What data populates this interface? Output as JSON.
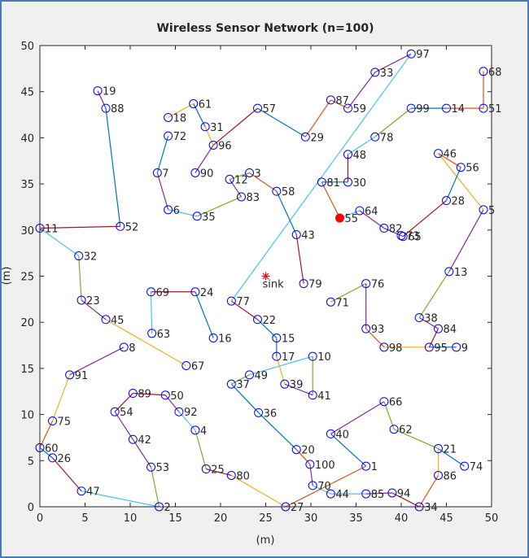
{
  "chart_data": {
    "type": "scatter",
    "title": "Wireless Sensor Network (n=100)",
    "xlabel": "(m)",
    "ylabel": "(m)",
    "xlim": [
      0,
      50
    ],
    "ylim": [
      0,
      50
    ],
    "xticks": [
      0,
      5,
      10,
      15,
      20,
      25,
      30,
      35,
      40,
      45,
      50
    ],
    "yticks": [
      0,
      5,
      10,
      15,
      20,
      25,
      30,
      35,
      40,
      45,
      50
    ],
    "nodes": {
      "color": "#0000ff",
      "labels": [
        "1",
        "2",
        "3",
        "4",
        "5",
        "6",
        "7",
        "8",
        "9",
        "10",
        "11",
        "12",
        "13",
        "14",
        "15",
        "16",
        "17",
        "18",
        "19",
        "20",
        "21",
        "22",
        "23",
        "24",
        "25",
        "26",
        "27",
        "28",
        "29",
        "30",
        "31",
        "32",
        "33",
        "34",
        "35",
        "36",
        "37",
        "38",
        "39",
        "40",
        "41",
        "42",
        "43",
        "44",
        "45",
        "46",
        "47",
        "48",
        "49",
        "50",
        "51",
        "52",
        "53",
        "54",
        "55",
        "56",
        "57",
        "58",
        "59",
        "60",
        "61",
        "62",
        "63",
        "64",
        "65",
        "66",
        "67",
        "68",
        "69",
        "70",
        "71",
        "72",
        "73",
        "74",
        "75",
        "76",
        "77",
        "78",
        "79",
        "80",
        "81",
        "82",
        "83",
        "84",
        "85",
        "86",
        "87",
        "88",
        "89",
        "90",
        "91",
        "92",
        "93",
        "94",
        "95",
        "96",
        "97",
        "98",
        "99",
        "100"
      ],
      "x": [
        36.1,
        13.2,
        23.2,
        17.2,
        49.1,
        14.2,
        13.0,
        9.3,
        46.1,
        30.2,
        0.0,
        21.0,
        45.3,
        45.0,
        26.2,
        19.2,
        26.2,
        14.2,
        6.4,
        28.4,
        44.1,
        24.1,
        4.6,
        17.2,
        18.4,
        1.4,
        27.2,
        45.0,
        29.4,
        34.1,
        18.3,
        4.3,
        37.1,
        42.0,
        17.4,
        24.2,
        21.2,
        42.0,
        27.1,
        32.2,
        30.2,
        10.3,
        28.4,
        32.2,
        7.3,
        44.1,
        4.6,
        34.1,
        23.2,
        13.9,
        49.1,
        8.9,
        12.3,
        8.3,
        33.2,
        46.6,
        24.1,
        26.2,
        34.1,
        0.0,
        17.0,
        39.2,
        12.4,
        35.4,
        40.2,
        38.1,
        16.2,
        49.1,
        12.3,
        30.2,
        32.2,
        14.2,
        40.0,
        47.0,
        1.4,
        36.1,
        21.2,
        37.1,
        29.2,
        21.2,
        31.2,
        38.1,
        22.3,
        44.1,
        36.1,
        44.1,
        32.2,
        7.3,
        10.3,
        17.2,
        3.3,
        15.4,
        36.1,
        39.0,
        43.1,
        19.2,
        41.1,
        38.1,
        41.1,
        29.9
      ],
      "y": [
        4.4,
        0.0,
        36.2,
        8.3,
        32.2,
        32.2,
        36.2,
        17.3,
        17.3,
        16.3,
        30.2,
        35.5,
        25.5,
        43.2,
        18.3,
        18.3,
        16.3,
        42.2,
        45.1,
        6.2,
        6.3,
        20.3,
        22.4,
        23.3,
        4.1,
        5.3,
        0.0,
        33.2,
        40.1,
        35.2,
        41.2,
        27.2,
        47.1,
        0.0,
        31.5,
        10.2,
        13.3,
        20.5,
        13.3,
        7.9,
        12.1,
        7.3,
        29.5,
        1.4,
        20.3,
        38.3,
        1.7,
        38.2,
        14.3,
        12.1,
        43.2,
        30.4,
        4.3,
        10.3,
        31.3,
        36.8,
        43.2,
        34.2,
        43.2,
        6.4,
        43.7,
        8.4,
        18.8,
        32.1,
        29.3,
        11.4,
        15.3,
        47.2,
        23.3,
        2.3,
        22.2,
        40.2,
        29.4,
        4.4,
        9.3,
        24.2,
        22.3,
        40.1,
        24.2,
        3.4,
        35.2,
        30.2,
        33.6,
        19.3,
        1.4,
        3.4,
        44.1,
        43.2,
        12.3,
        36.2,
        14.3,
        10.3,
        19.3,
        1.5,
        17.3,
        39.2,
        49.1,
        17.3,
        43.2,
        4.6
      ]
    },
    "highlight": {
      "node": "55",
      "color": "#ff0000"
    },
    "sink": {
      "label": "sink",
      "x": 25,
      "y": 25,
      "color": "#ff0000"
    },
    "edges": [
      {
        "from": "97",
        "to": "33",
        "color": "#7E2F8E"
      },
      {
        "from": "33",
        "to": "59",
        "color": "#7E2F8E"
      },
      {
        "from": "97",
        "to": "77",
        "color": "#4DBEEE"
      },
      {
        "from": "87",
        "to": "59",
        "color": "#D95319"
      },
      {
        "from": "87",
        "to": "29",
        "color": "#D95319"
      },
      {
        "from": "29",
        "to": "57",
        "color": "#0072BD"
      },
      {
        "from": "57",
        "to": "96",
        "color": "#A2142F"
      },
      {
        "from": "96",
        "to": "31",
        "color": "#EDB120"
      },
      {
        "from": "31",
        "to": "61",
        "color": "#0072BD"
      },
      {
        "from": "61",
        "to": "18",
        "color": "#EDB120"
      },
      {
        "from": "96",
        "to": "90",
        "color": "#7E2F8E"
      },
      {
        "from": "72",
        "to": "7",
        "color": "#0072BD"
      },
      {
        "from": "7",
        "to": "6",
        "color": "#7E2F8E"
      },
      {
        "from": "6",
        "to": "35",
        "color": "#4DBEEE"
      },
      {
        "from": "35",
        "to": "83",
        "color": "#77AC30"
      },
      {
        "from": "83",
        "to": "12",
        "color": "#7E2F8E"
      },
      {
        "from": "12",
        "to": "3",
        "color": "#77AC30"
      },
      {
        "from": "3",
        "to": "58",
        "color": "#D95319"
      },
      {
        "from": "58",
        "to": "43",
        "color": "#0072BD"
      },
      {
        "from": "43",
        "to": "79",
        "color": "#A2142F"
      },
      {
        "from": "71",
        "to": "76",
        "color": "#77AC30"
      },
      {
        "from": "76",
        "to": "93",
        "color": "#7E2F8E"
      },
      {
        "from": "93",
        "to": "98",
        "color": "#D95319"
      },
      {
        "from": "98",
        "to": "95",
        "color": "#EDB120"
      },
      {
        "from": "95",
        "to": "9",
        "color": "#0072BD"
      },
      {
        "from": "95",
        "to": "84",
        "color": "#A2142F"
      },
      {
        "from": "84",
        "to": "38",
        "color": "#7E2F8E"
      },
      {
        "from": "38",
        "to": "13",
        "color": "#77AC30"
      },
      {
        "from": "13",
        "to": "5",
        "color": "#7E2F8E"
      },
      {
        "from": "5",
        "to": "46",
        "color": "#EDB120"
      },
      {
        "from": "46",
        "to": "56",
        "color": "#D95319"
      },
      {
        "from": "56",
        "to": "28",
        "color": "#0072BD"
      },
      {
        "from": "28",
        "to": "65",
        "color": "#A2142F"
      },
      {
        "from": "65",
        "to": "73",
        "color": "#0072BD"
      },
      {
        "from": "73",
        "to": "82",
        "color": "#7E2F8E"
      },
      {
        "from": "82",
        "to": "64",
        "color": "#7E2F8E"
      },
      {
        "from": "64",
        "to": "55",
        "color": "#4DBEEE"
      },
      {
        "from": "55",
        "to": "81",
        "color": "#D95319"
      },
      {
        "from": "81",
        "to": "30",
        "color": "#0072BD"
      },
      {
        "from": "30",
        "to": "48",
        "color": "#A2142F"
      },
      {
        "from": "48",
        "to": "78",
        "color": "#4DBEEE"
      },
      {
        "from": "78",
        "to": "99",
        "color": "#77AC30"
      },
      {
        "from": "99",
        "to": "14",
        "color": "#0072BD"
      },
      {
        "from": "14",
        "to": "51",
        "color": "#D95319"
      },
      {
        "from": "51",
        "to": "68",
        "color": "#D95319"
      },
      {
        "from": "19",
        "to": "88",
        "color": "#7E2F8E"
      },
      {
        "from": "88",
        "to": "52",
        "color": "#0072BD"
      },
      {
        "from": "52",
        "to": "11",
        "color": "#A2142F"
      },
      {
        "from": "11",
        "to": "32",
        "color": "#4DBEEE"
      },
      {
        "from": "32",
        "to": "23",
        "color": "#77AC30"
      },
      {
        "from": "23",
        "to": "45",
        "color": "#7E2F8E"
      },
      {
        "from": "45",
        "to": "67",
        "color": "#EDB120"
      },
      {
        "from": "24",
        "to": "69",
        "color": "#A2142F"
      },
      {
        "from": "24",
        "to": "16",
        "color": "#0072BD"
      },
      {
        "from": "69",
        "to": "63",
        "color": "#4DBEEE"
      },
      {
        "from": "8",
        "to": "91",
        "color": "#7E2F8E"
      },
      {
        "from": "91",
        "to": "75",
        "color": "#EDB120"
      },
      {
        "from": "75",
        "to": "60",
        "color": "#D95319"
      },
      {
        "from": "60",
        "to": "26",
        "color": "#0072BD"
      },
      {
        "from": "26",
        "to": "47",
        "color": "#A2142F"
      },
      {
        "from": "47",
        "to": "2",
        "color": "#4DBEEE"
      },
      {
        "from": "2",
        "to": "53",
        "color": "#77AC30"
      },
      {
        "from": "53",
        "to": "42",
        "color": "#7E2F8E"
      },
      {
        "from": "42",
        "to": "54",
        "color": "#7E2F8E"
      },
      {
        "from": "54",
        "to": "89",
        "color": "#A2142F"
      },
      {
        "from": "89",
        "to": "50",
        "color": "#A2142F"
      },
      {
        "from": "50",
        "to": "92",
        "color": "#7E2F8E"
      },
      {
        "from": "92",
        "to": "4",
        "color": "#4DBEEE"
      },
      {
        "from": "4",
        "to": "25",
        "color": "#77AC30"
      },
      {
        "from": "25",
        "to": "80",
        "color": "#A2142F"
      },
      {
        "from": "80",
        "to": "27",
        "color": "#EDB120"
      },
      {
        "from": "27",
        "to": "1",
        "color": "#D95319"
      },
      {
        "from": "1",
        "to": "40",
        "color": "#0072BD"
      },
      {
        "from": "40",
        "to": "66",
        "color": "#7E2F8E"
      },
      {
        "from": "66",
        "to": "62",
        "color": "#77AC30"
      },
      {
        "from": "62",
        "to": "21",
        "color": "#77AC30"
      },
      {
        "from": "21",
        "to": "74",
        "color": "#0072BD"
      },
      {
        "from": "21",
        "to": "86",
        "color": "#EDB120"
      },
      {
        "from": "86",
        "to": "34",
        "color": "#D95319"
      },
      {
        "from": "34",
        "to": "94",
        "color": "#A2142F"
      },
      {
        "from": "94",
        "to": "85",
        "color": "#7E2F8E"
      },
      {
        "from": "85",
        "to": "44",
        "color": "#4DBEEE"
      },
      {
        "from": "44",
        "to": "70",
        "color": "#4DBEEE"
      },
      {
        "from": "70",
        "to": "100",
        "color": "#7E2F8E"
      },
      {
        "from": "100",
        "to": "20",
        "color": "#D95319"
      },
      {
        "from": "20",
        "to": "36",
        "color": "#0072BD"
      },
      {
        "from": "36",
        "to": "37",
        "color": "#0072BD"
      },
      {
        "from": "37",
        "to": "49",
        "color": "#77AC30"
      },
      {
        "from": "49",
        "to": "10",
        "color": "#4DBEEE"
      },
      {
        "from": "10",
        "to": "41",
        "color": "#77AC30"
      },
      {
        "from": "41",
        "to": "39",
        "color": "#7E2F8E"
      },
      {
        "from": "39",
        "to": "17",
        "color": "#EDB120"
      },
      {
        "from": "17",
        "to": "15",
        "color": "#0072BD"
      },
      {
        "from": "15",
        "to": "22",
        "color": "#0072BD"
      },
      {
        "from": "22",
        "to": "77",
        "color": "#A2142F"
      }
    ]
  }
}
